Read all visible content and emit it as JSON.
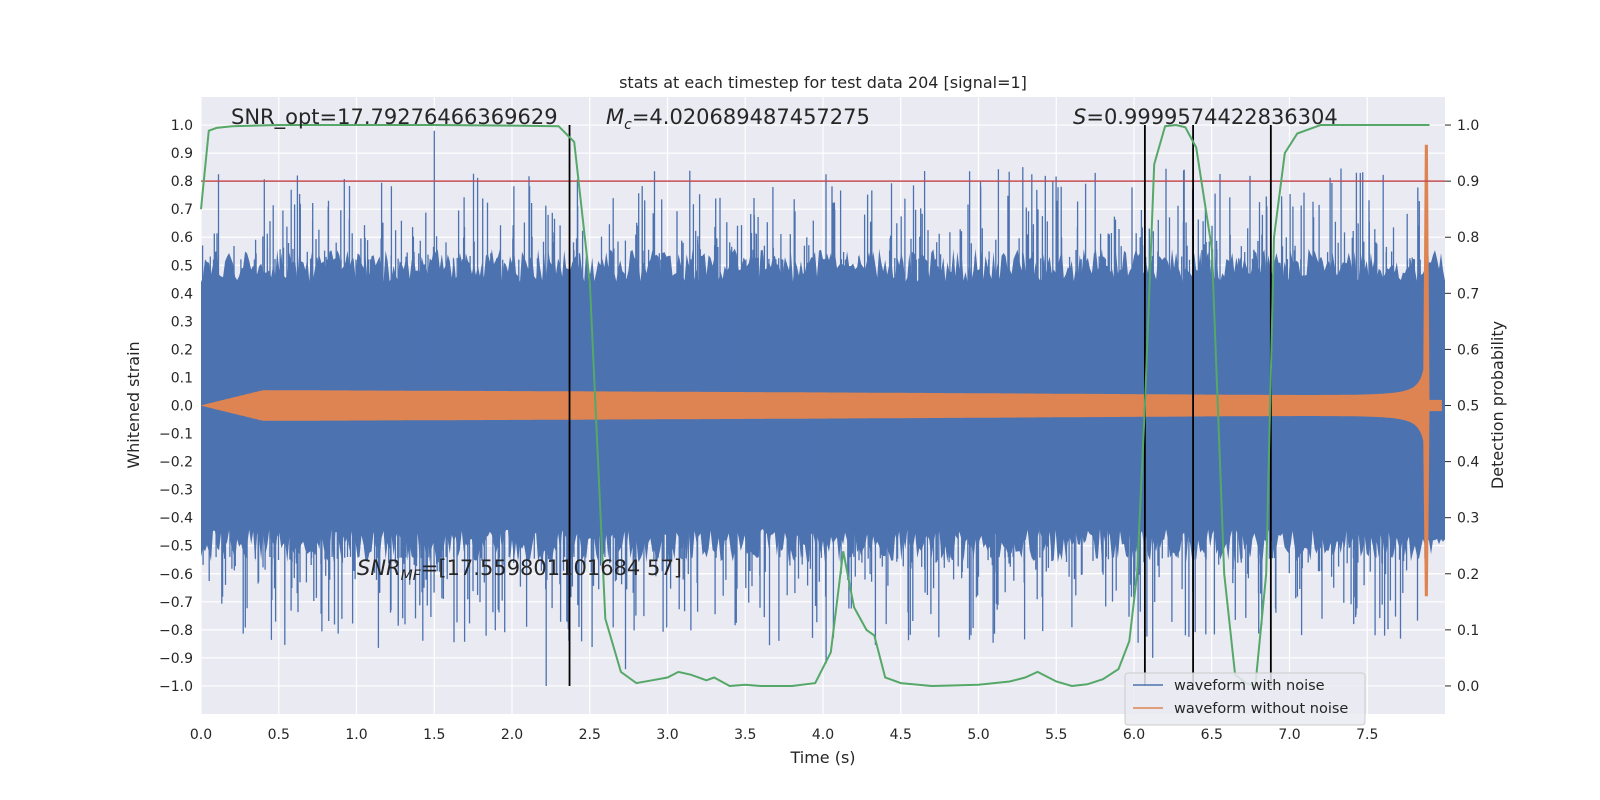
{
  "chart_data": {
    "type": "line",
    "title": "stats at each timestep for test data 204 [signal=1]",
    "xlabel": "Time (s)",
    "ylabel": "Whitened strain",
    "y2label": "Detection probability",
    "xlim": [
      0.0,
      8.0
    ],
    "ylim": [
      -1.1,
      1.1
    ],
    "y2lim": [
      -0.05,
      1.05
    ],
    "x_ticks": [
      "0.0",
      "0.5",
      "1.0",
      "1.5",
      "2.0",
      "2.5",
      "3.0",
      "3.5",
      "4.0",
      "4.5",
      "5.0",
      "5.5",
      "6.0",
      "6.5",
      "7.0",
      "7.5"
    ],
    "y_ticks": [
      "1.0",
      "0.9",
      "0.8",
      "0.7",
      "0.6",
      "0.5",
      "0.4",
      "0.3",
      "0.2",
      "0.1",
      "0.0",
      "-0.1",
      "-0.2",
      "-0.3",
      "-0.4",
      "-0.5",
      "-0.6",
      "-0.7",
      "-0.8",
      "-0.9",
      "-1.0"
    ],
    "y2_ticks": [
      "1.0",
      "0.9",
      "0.8",
      "0.7",
      "0.6",
      "0.5",
      "0.4",
      "0.3",
      "0.2",
      "0.1",
      "0.0"
    ],
    "grid": true,
    "legend_position": "lower-right",
    "annotations": {
      "snr_opt": "SNR_opt=17.79276466369629",
      "mc_symbol": "M",
      "mc_sub": "c",
      "mc_value": "=4.020689487457275",
      "s_symbol": "S",
      "s_value": "=0.9999574422836304",
      "snrmf_symbol": "SNR",
      "snrmf_sub": "MF",
      "snrmf_value": "=[17.559801101684 57]"
    },
    "threshold": 0.9,
    "vertical_lines": [
      2.37,
      6.07,
      6.38,
      6.88
    ],
    "series": [
      {
        "name": "waveform with noise",
        "color": "#4c72b0",
        "envelope_approx": 0.5,
        "spike_max": 0.98,
        "spike_min": -1.0
      },
      {
        "name": "waveform without noise",
        "color": "#dd8452",
        "peak_time": 7.88,
        "peak_value": 0.93,
        "trough_value": -0.68
      },
      {
        "name": "detection probability",
        "color": "#55a868",
        "x": [
          0.0,
          0.05,
          0.1,
          0.2,
          0.5,
          1.0,
          1.5,
          2.0,
          2.3,
          2.4,
          2.5,
          2.6,
          2.7,
          2.8,
          2.9,
          3.0,
          3.07,
          3.15,
          3.25,
          3.3,
          3.4,
          3.5,
          3.6,
          3.8,
          3.95,
          4.05,
          4.13,
          4.2,
          4.28,
          4.33,
          4.4,
          4.5,
          4.7,
          5.0,
          5.2,
          5.3,
          5.38,
          5.5,
          5.6,
          5.7,
          5.8,
          5.9,
          5.97,
          6.02,
          6.07,
          6.13,
          6.2,
          6.27,
          6.33,
          6.4,
          6.5,
          6.58,
          6.65,
          6.72,
          6.78,
          6.85,
          6.9,
          6.97,
          7.05,
          7.2,
          7.5,
          7.9
        ],
        "values": [
          0.85,
          0.99,
          0.995,
          0.998,
          1.0,
          1.0,
          1.0,
          0.999,
          0.998,
          0.97,
          0.72,
          0.12,
          0.025,
          0.005,
          0.01,
          0.015,
          0.025,
          0.02,
          0.01,
          0.015,
          0.0,
          0.002,
          0.0,
          0.0,
          0.005,
          0.06,
          0.24,
          0.14,
          0.1,
          0.09,
          0.015,
          0.005,
          0.0,
          0.002,
          0.008,
          0.015,
          0.025,
          0.008,
          0.0,
          0.003,
          0.012,
          0.03,
          0.08,
          0.2,
          0.5,
          0.93,
          0.998,
          1.0,
          0.996,
          0.96,
          0.78,
          0.2,
          0.02,
          0.005,
          0.0,
          0.2,
          0.8,
          0.95,
          0.985,
          1.0,
          1.0,
          1.0
        ]
      }
    ],
    "right_axis_extra_hlines": [
      0.2,
      0.4
    ]
  }
}
